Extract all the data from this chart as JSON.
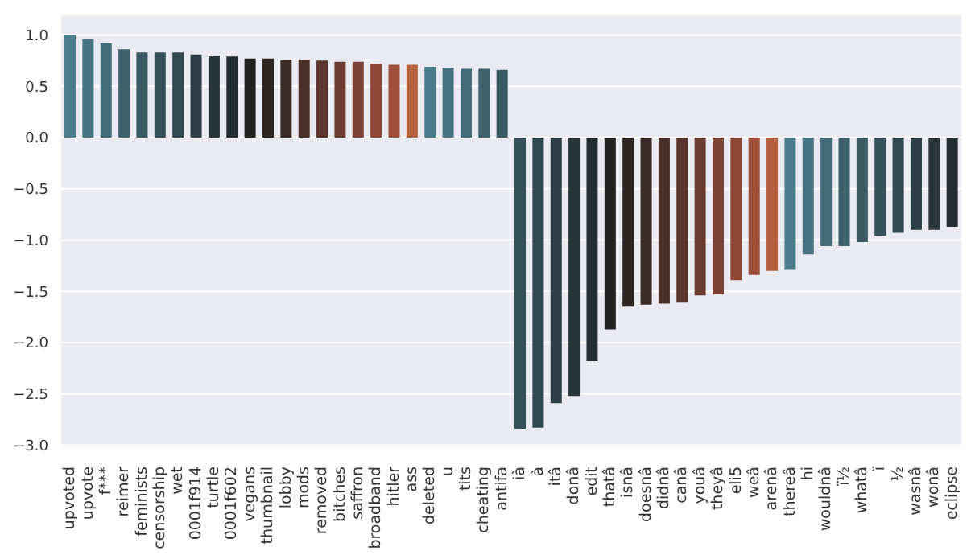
{
  "chart_data": {
    "type": "bar",
    "categories": [
      "upvoted",
      "upvote",
      "f***",
      "reimer",
      "feminists",
      "censorship",
      "wet",
      "0001f914",
      "turtle",
      "0001f602",
      "vegans",
      "thumbnail",
      "lobby",
      "mods",
      "removed",
      "bitches",
      "saffron",
      "broadband",
      "hitler",
      "ass",
      "deleted",
      "u",
      "tits",
      "cheating",
      "antifa",
      "ià",
      "à",
      "itâ",
      "donâ",
      "edit",
      "thatâ",
      "isnâ",
      "doesnâ",
      "didnâ",
      "canâ",
      "youâ",
      "theyâ",
      "eli5",
      "weâ",
      "arenâ",
      "thereâ",
      "hi",
      "wouldnâ",
      "ï½",
      "whatâ",
      "ï",
      "½",
      "wasnâ",
      "wonâ",
      "eclipse"
    ],
    "values": [
      1.0,
      0.96,
      0.92,
      0.86,
      0.83,
      0.83,
      0.83,
      0.81,
      0.8,
      0.79,
      0.77,
      0.77,
      0.76,
      0.76,
      0.75,
      0.74,
      0.74,
      0.72,
      0.71,
      0.71,
      0.69,
      0.68,
      0.67,
      0.67,
      0.66,
      -2.84,
      -2.83,
      -2.59,
      -2.52,
      -2.18,
      -1.87,
      -1.65,
      -1.63,
      -1.62,
      -1.61,
      -1.54,
      -1.53,
      -1.39,
      -1.34,
      -1.3,
      -1.29,
      -1.14,
      -1.06,
      -1.06,
      -1.02,
      -0.96,
      -0.93,
      -0.9,
      -0.9,
      -0.87
    ],
    "colors": [
      "#4a7d8c",
      "#457482",
      "#416b78",
      "#3d626d",
      "#395a63",
      "#35515a",
      "#304850",
      "#2c3f46",
      "#28363b",
      "#232e31",
      "#222222",
      "#2e2523",
      "#3c2a25",
      "#4b3028",
      "#5a352b",
      "#6a3b2e",
      "#7b4132",
      "#8c4836",
      "#9e4f3a",
      "#b5603f",
      "#4a7d8c",
      "#457482",
      "#416b78",
      "#3d626d",
      "#395a63",
      "#35515a",
      "#304850",
      "#2c3f46",
      "#28363b",
      "#232e31",
      "#222222",
      "#2e2523",
      "#3c2a25",
      "#4b3028",
      "#5a352b",
      "#6a3b2e",
      "#7b4132",
      "#8c4836",
      "#9e4f3a",
      "#b5603f",
      "#4a7d8c",
      "#457482",
      "#416b78",
      "#3d626d",
      "#395a63",
      "#35515a",
      "#304850",
      "#2c3f46",
      "#28363b",
      "#232e31"
    ],
    "ylim": [
      -3.02,
      1.2
    ],
    "yticks": [
      {
        "value": -3,
        "label": "−3.0"
      },
      {
        "value": -2.5,
        "label": "−2.5"
      },
      {
        "value": -2,
        "label": "−2.0"
      },
      {
        "value": -1.5,
        "label": "−1.5"
      },
      {
        "value": -1,
        "label": "−1.0"
      },
      {
        "value": -0.5,
        "label": "−0.5"
      },
      {
        "value": 0,
        "label": "0.0"
      },
      {
        "value": 0.5,
        "label": "0.5"
      },
      {
        "value": 1,
        "label": "1.0"
      }
    ],
    "grid": "y"
  }
}
